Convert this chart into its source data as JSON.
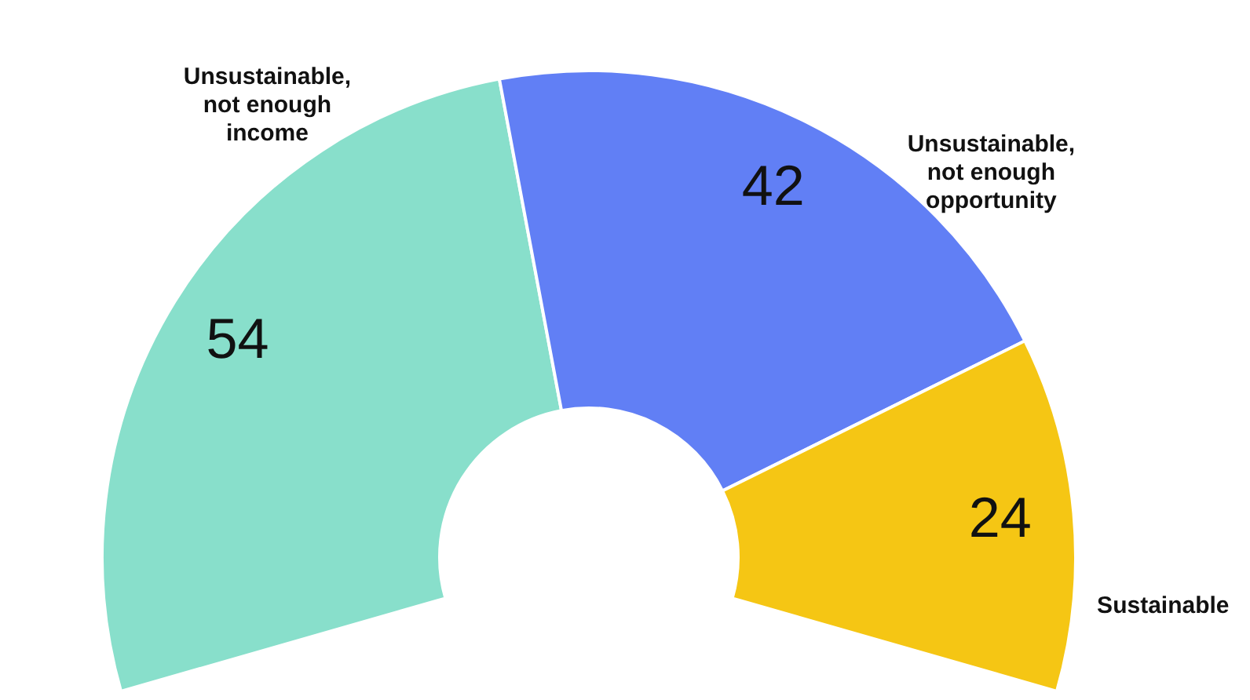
{
  "chart_data": {
    "type": "donut",
    "categories": [
      "Unsustainable, not enough income",
      "Unsustainable, not enough opportunity",
      "Sustainable"
    ],
    "values": [
      54,
      42,
      24
    ],
    "colors": [
      "#88dfcb",
      "#617ff5",
      "#f5c614"
    ],
    "data_labels": true
  }
}
